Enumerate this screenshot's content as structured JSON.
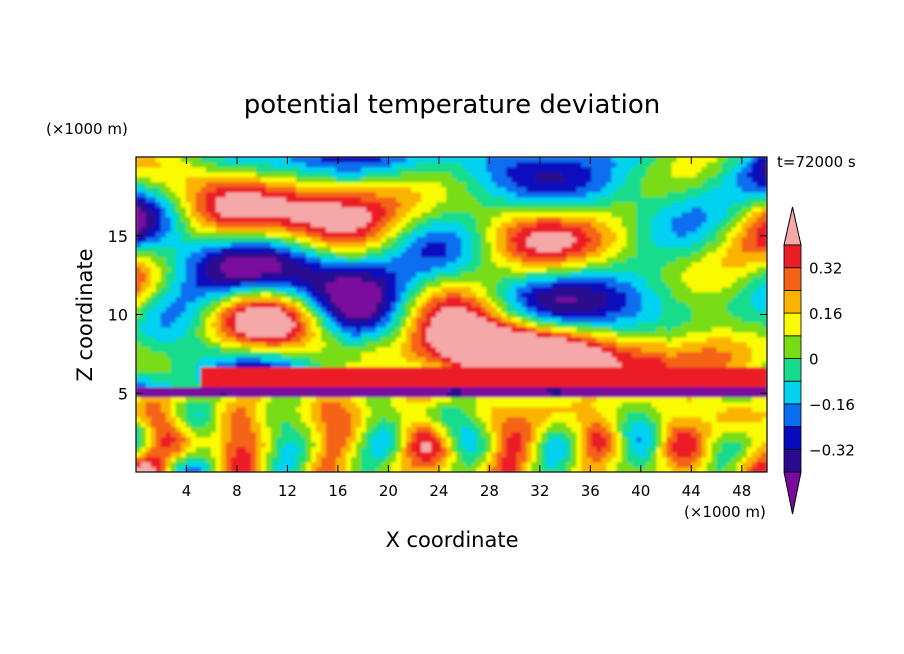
{
  "chart_data": {
    "type": "heatmap",
    "title": "potential temperature deviation",
    "time_label": "t=72000 s",
    "xlabel": "X coordinate",
    "ylabel": "Z coordinate",
    "x_unit": "(×1000 m)",
    "y_unit": "(×1000 m)",
    "xlim": [
      0,
      50
    ],
    "ylim": [
      0,
      20
    ],
    "x_ticks": [
      4,
      8,
      12,
      16,
      20,
      24,
      28,
      32,
      36,
      40,
      44,
      48
    ],
    "y_ticks": [
      5,
      10,
      15
    ],
    "colorbar": {
      "levels": [
        -0.4,
        -0.32,
        -0.24,
        -0.16,
        -0.08,
        0,
        0.08,
        0.16,
        0.24,
        0.32,
        0.4
      ],
      "labels": [
        "0.32",
        "0.16",
        "0",
        "−0.16",
        "−0.32"
      ],
      "label_values": [
        0.32,
        0.16,
        0,
        -0.16,
        -0.32
      ],
      "colors": [
        "#7a0a9e",
        "#2a0a8e",
        "#0a0ac0",
        "#0a6ef0",
        "#00d2f0",
        "#14dc8c",
        "#78dc14",
        "#fafa00",
        "#fab400",
        "#f56414",
        "#eb1e28",
        "#f4a8a8"
      ],
      "extend": "both"
    },
    "field_description_layers": [
      {
        "z_range": [
          0,
          4.8
        ],
        "pattern": "turbulent mixed layer, values mostly -0.16 to 0.4"
      },
      {
        "z_range": [
          5.5,
          6.8
        ],
        "pattern": "thin band near 0.32 to 0.4"
      },
      {
        "z_range": [
          6.8,
          20
        ],
        "pattern": "alternating patches of < -0.4 and > 0.4"
      }
    ]
  }
}
